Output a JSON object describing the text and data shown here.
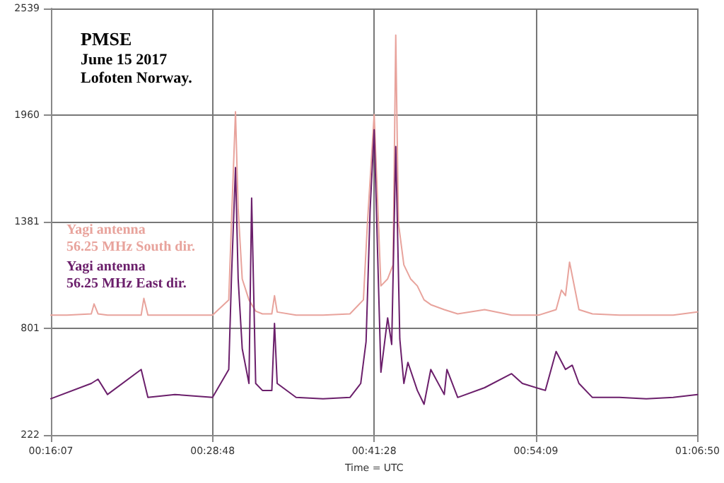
{
  "chart_data": {
    "type": "line",
    "title": "PMSE",
    "subtitle": "June 15 2017\nLofoten Norway.",
    "xlabel": "Time = UTC",
    "xlim": [
      0.26861,
      1.11389
    ],
    "xticks": [
      {
        "value": 0.26861,
        "label": "00:16:07"
      },
      {
        "value": 0.48,
        "label": "00:28:48"
      },
      {
        "value": 0.69111,
        "label": "00:41:28"
      },
      {
        "value": 0.9025,
        "label": "00:54:09"
      },
      {
        "value": 1.11389,
        "label": "01:06:50"
      }
    ],
    "ylim": [
      222,
      2539
    ],
    "yticks": [
      222,
      801,
      1381,
      1960,
      2539
    ],
    "grid": true,
    "legend": "left",
    "marker": "none",
    "line_style": "solid",
    "series": [
      {
        "name": "Yagi antenna\n56.25 MHz South dir.",
        "color": "#e8a39c",
        "x": [
          0.26861,
          0.2897,
          0.3214,
          0.325,
          0.3302,
          0.3426,
          0.3866,
          0.3901,
          0.3954,
          0.4306,
          0.4799,
          0.5011,
          0.5046,
          0.5099,
          0.5134,
          0.5187,
          0.5275,
          0.5363,
          0.5451,
          0.5574,
          0.5609,
          0.5644,
          0.5891,
          0.6243,
          0.6595,
          0.6771,
          0.6824,
          0.6912,
          0.7,
          0.7088,
          0.7159,
          0.7194,
          0.7229,
          0.73,
          0.7388,
          0.7476,
          0.7564,
          0.7652,
          0.7828,
          0.8004,
          0.8356,
          0.8708,
          0.9061,
          0.929,
          0.936,
          0.9413,
          0.9466,
          0.9589,
          0.9765,
          1.0117,
          1.0469,
          1.0821,
          1.1138
        ],
        "values": [
          873,
          873,
          880,
          934,
          880,
          873,
          873,
          964,
          873,
          873,
          873,
          956,
          1373,
          1978,
          1448,
          1070,
          956,
          895,
          880,
          880,
          979,
          890,
          873,
          873,
          880,
          956,
          1373,
          1963,
          1032,
          1070,
          1146,
          2394,
          1373,
          1146,
          1070,
          1032,
          956,
          930,
          903,
          880,
          903,
          873,
          873,
          903,
          1009,
          979,
          1161,
          903,
          880,
          873,
          873,
          873,
          890
        ]
      },
      {
        "name": "Yagi antenna\n56.25 MHz East dir.",
        "color": "#6b1f6b",
        "x": [
          0.26861,
          0.3214,
          0.3302,
          0.3426,
          0.3866,
          0.3954,
          0.4306,
          0.4799,
          0.5011,
          0.5046,
          0.5099,
          0.5134,
          0.5187,
          0.5275,
          0.531,
          0.5363,
          0.5451,
          0.5574,
          0.5609,
          0.5644,
          0.5891,
          0.6243,
          0.6595,
          0.6736,
          0.6806,
          0.6859,
          0.6912,
          0.7,
          0.7088,
          0.7141,
          0.7194,
          0.7247,
          0.73,
          0.7353,
          0.7476,
          0.7564,
          0.7652,
          0.7828,
          0.7863,
          0.8004,
          0.8356,
          0.8708,
          0.8849,
          0.9149,
          0.929,
          0.9413,
          0.9501,
          0.9589,
          0.9765,
          1.0117,
          1.0469,
          1.0821,
          1.1138
        ],
        "values": [
          419,
          502,
          525,
          442,
          578,
          426,
          442,
          426,
          578,
          1070,
          1675,
          1070,
          691,
          502,
          1509,
          502,
          464,
          464,
          828,
          502,
          426,
          419,
          426,
          502,
          729,
          1448,
          1880,
          563,
          858,
          714,
          1789,
          744,
          502,
          616,
          464,
          389,
          578,
          442,
          578,
          426,
          479,
          555,
          502,
          464,
          676,
          578,
          601,
          502,
          426,
          426,
          419,
          426,
          442
        ]
      }
    ]
  }
}
